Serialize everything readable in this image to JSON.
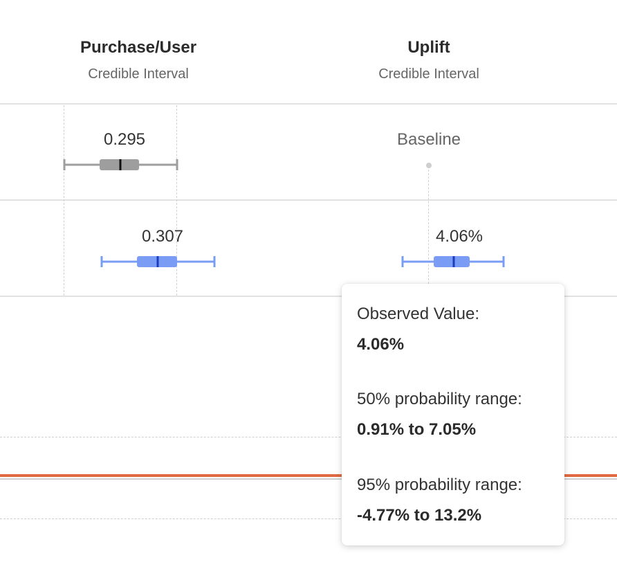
{
  "columns": {
    "purchase": {
      "title": "Purchase/User",
      "subtitle": "Credible Interval"
    },
    "uplift": {
      "title": "Uplift",
      "subtitle": "Credible Interval"
    }
  },
  "rows": [
    {
      "purchase_value": "0.295",
      "uplift_value": "Baseline",
      "color": "#9e9e9e"
    },
    {
      "purchase_value": "0.307",
      "uplift_value": "4.06%",
      "color": "#7a9cf5"
    }
  ],
  "tooltip": {
    "observed_label": "Observed Value:",
    "observed_value": "4.06%",
    "p50_label": "50% probability range:",
    "p50_value": "0.91% to 7.05%",
    "p95_label": "95% probability range:",
    "p95_value": "-4.77% to 13.2%"
  },
  "colors": {
    "baseline_box": "#9e9e9e",
    "variant_box": "#7a9cf5",
    "variant_median": "#1a3dbf",
    "chart_line": "#e06a43"
  }
}
